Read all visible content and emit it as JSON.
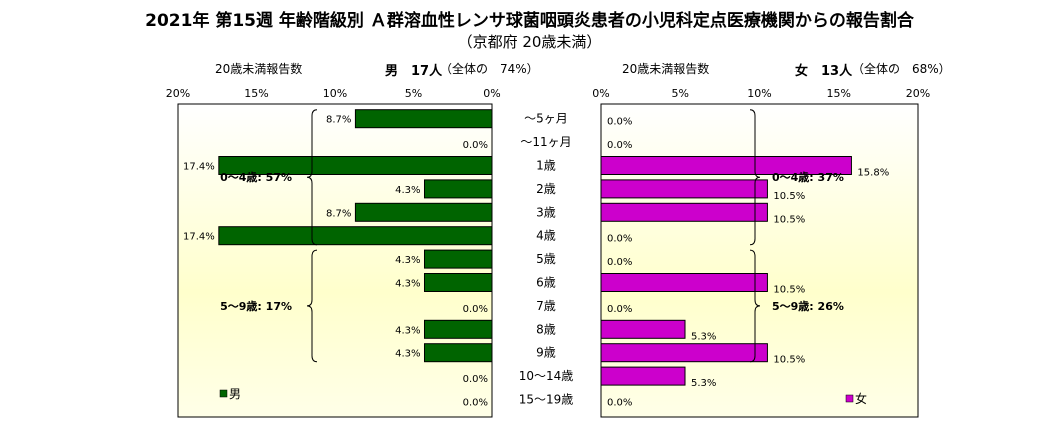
{
  "title": "2021年 第15週 年齢階級別 Ａ群溶血性レンサ球菌咽頭炎患者の小児科定点医療機関からの報告割合",
  "subtitle": "（京都府 20歳未満）",
  "left_header": {
    "label": "20歳未満報告数",
    "count": "男　17人",
    "share": "（全体の　74%）"
  },
  "right_header": {
    "label": "20歳未満報告数",
    "count": "女　13人",
    "share": "（全体の　68%）"
  },
  "chart_data": {
    "type": "bar",
    "orientation": "horizontal-population-pyramid",
    "categories": [
      "～5ヶ月",
      "～11ヶ月",
      "1歳",
      "2歳",
      "3歳",
      "4歳",
      "5歳",
      "6歳",
      "7歳",
      "8歳",
      "9歳",
      "10～14歳",
      "15～19歳"
    ],
    "xlim": [
      0,
      20
    ],
    "ticks": [
      "20%",
      "15%",
      "10%",
      "5%",
      "0%"
    ],
    "ticks_right": [
      "0%",
      "5%",
      "10%",
      "15%",
      "20%"
    ],
    "series": [
      {
        "name": "男",
        "color": "#006400",
        "values": [
          8.7,
          0.0,
          17.4,
          4.3,
          8.7,
          17.4,
          4.3,
          4.3,
          0.0,
          4.3,
          4.3,
          0.0,
          0.0
        ],
        "labels": [
          "8.7%",
          "0.0%",
          "17.4%",
          "4.3%",
          "8.7%",
          "17.4%",
          "4.3%",
          "4.3%",
          "0.0%",
          "4.3%",
          "4.3%",
          "0.0%",
          "0.0%"
        ]
      },
      {
        "name": "女",
        "color": "#cc00cc",
        "values": [
          0.0,
          0.0,
          15.8,
          10.5,
          10.5,
          0.0,
          0.0,
          10.5,
          0.0,
          5.3,
          10.5,
          5.3,
          0.0
        ],
        "labels": [
          "0.0%",
          "0.0%",
          "15.8%",
          "10.5%",
          "10.5%",
          "0.0%",
          "0.0%",
          "10.5%",
          "0.0%",
          "5.3%",
          "10.5%",
          "5.3%",
          "0.0%"
        ]
      }
    ],
    "groups": {
      "male": [
        {
          "label": "0～4歳: 57%",
          "from": 0,
          "to": 5
        },
        {
          "label": "5～9歳: 17%",
          "from": 6,
          "to": 10
        }
      ],
      "female": [
        {
          "label": "0～4歳: 37%",
          "from": 0,
          "to": 5
        },
        {
          "label": "5～9歳: 26%",
          "from": 6,
          "to": 10
        }
      ]
    },
    "legend": [
      "男",
      "女"
    ],
    "legend_position": "bottom-left"
  }
}
